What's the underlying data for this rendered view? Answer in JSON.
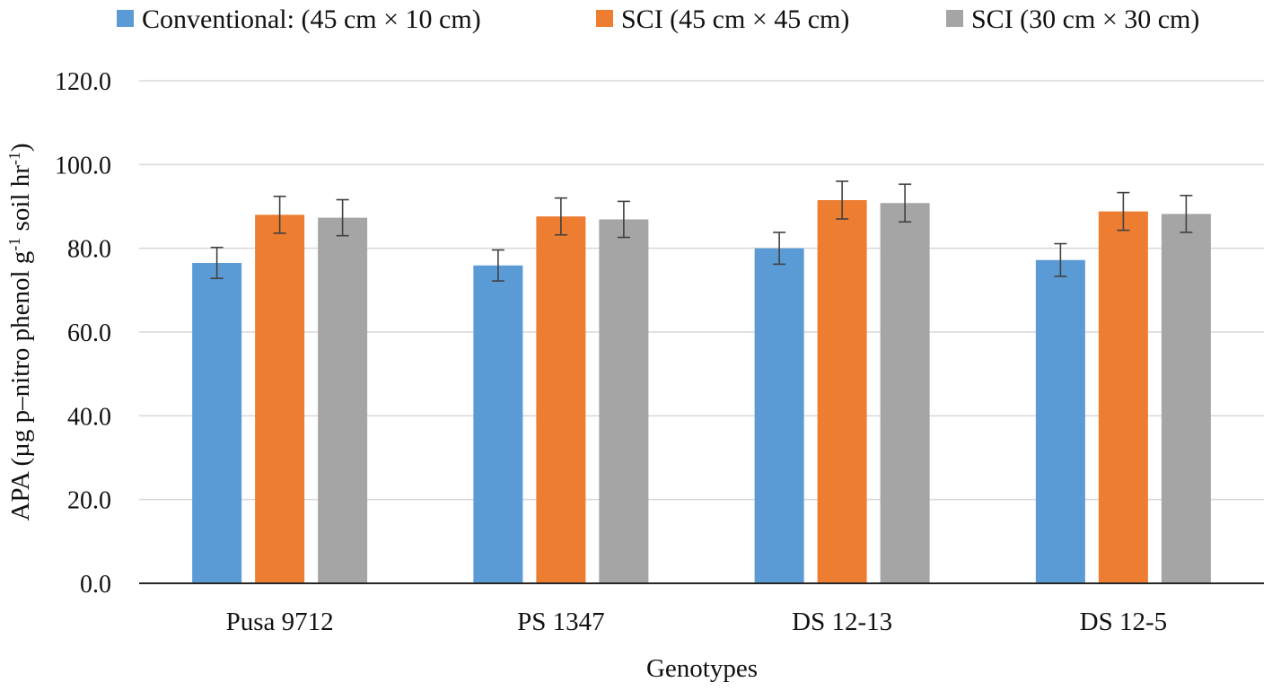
{
  "chart_data": {
    "type": "bar",
    "title": "",
    "xlabel": "Genotypes",
    "ylabel": {
      "prefix": "APA (µg p–nitro phenol g",
      "sup1": "-1",
      "middle": " soil hr",
      "sup2": "-1",
      "suffix": ")"
    },
    "ylim": [
      0,
      120
    ],
    "yticks": [
      "0.0",
      "20.0",
      "40.0",
      "60.0",
      "80.0",
      "100.0",
      "120.0"
    ],
    "grid": true,
    "legend_position": "top",
    "categories": [
      "Pusa 9712",
      "PS 1347",
      "DS 12-13",
      "DS 12-5"
    ],
    "series": [
      {
        "name": "Conventional: (45 cm × 10 cm)",
        "color": "#5b9bd5",
        "values": [
          76.5,
          75.9,
          80.0,
          77.2
        ],
        "errors": [
          3.7,
          3.7,
          3.8,
          3.9
        ]
      },
      {
        "name": "SCI (45 cm × 45 cm)",
        "color": "#ed7d31",
        "values": [
          88.0,
          87.6,
          91.5,
          88.8
        ],
        "errors": [
          4.4,
          4.4,
          4.5,
          4.5
        ]
      },
      {
        "name": "SCI (30 cm × 30 cm)",
        "color": "#a5a5a5",
        "values": [
          87.3,
          86.9,
          90.8,
          88.2
        ],
        "errors": [
          4.3,
          4.3,
          4.5,
          4.4
        ]
      }
    ]
  }
}
